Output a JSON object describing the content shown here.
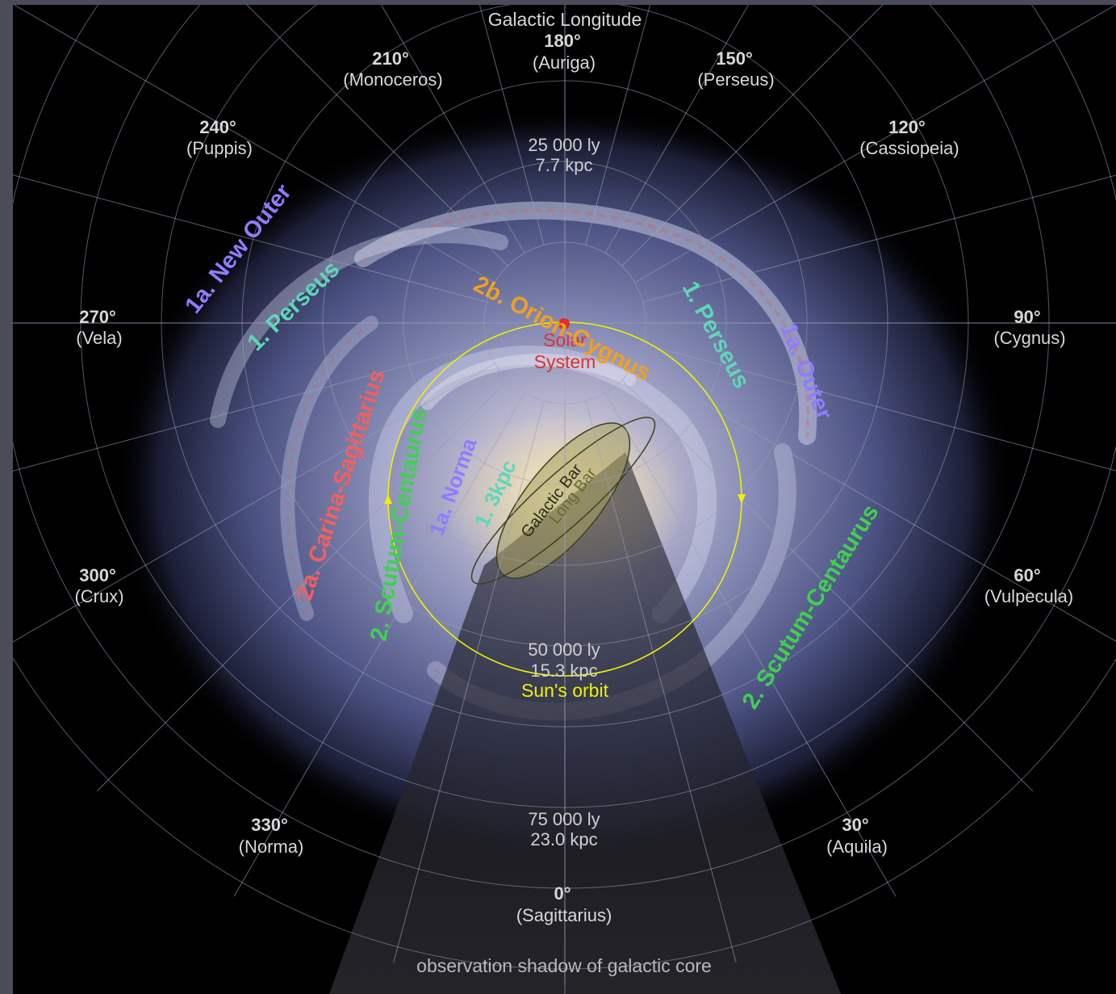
{
  "title": "Galactic Longitude",
  "longitudes": [
    {
      "deg": "180°",
      "name": "(Auriga)"
    },
    {
      "deg": "210°",
      "name": "(Monoceros)"
    },
    {
      "deg": "150°",
      "name": "(Perseus)"
    },
    {
      "deg": "240°",
      "name": "(Puppis)"
    },
    {
      "deg": "120°",
      "name": "(Cassiopeia)"
    },
    {
      "deg": "270°",
      "name": "(Vela)"
    },
    {
      "deg": "90°",
      "name": "(Cygnus)"
    },
    {
      "deg": "300°",
      "name": "(Crux)"
    },
    {
      "deg": "60°",
      "name": "(Vulpecula)"
    },
    {
      "deg": "330°",
      "name": "(Norma)"
    },
    {
      "deg": "30°",
      "name": "(Aquila)"
    },
    {
      "deg": "0°",
      "name": "(Sagittarius)"
    }
  ],
  "distances": [
    {
      "ly": "25 000 ly",
      "kpc": "7.7 kpc"
    },
    {
      "ly": "50 000 ly",
      "kpc": "15.3 kpc"
    },
    {
      "ly": "75 000 ly",
      "kpc": "23.0 kpc"
    }
  ],
  "sun_orbit": "Sun's orbit",
  "solar_system": {
    "line1": "Solar",
    "line2": "System"
  },
  "arms": {
    "new_outer": "1a. New Outer",
    "perseus_left": "1. Perseus",
    "orion_cygnus": "2b. Orion-Cygnus",
    "perseus_right": "1. Perseus",
    "outer": "1a. Outer",
    "carina_sagittarius": "2a. Carina-Sagittarius",
    "scutum_centaurus_left": "2. Scutum-Centaurus",
    "norma": "1a. Norma",
    "three_kpc": "1. 3kpc",
    "scutum_centaurus_right": "2. Scutum-Centaurus"
  },
  "galactic_bar": "Galactic Bar",
  "long_bar": "Long Bar",
  "shadow_caption": "observation shadow of galactic core",
  "colors": {
    "background": "#000000",
    "frame": "#4a4c5a",
    "new_outer": "#8f7cff",
    "perseus": "#5fd6b8",
    "orion": "#f0a020",
    "carina": "#f06060",
    "scutum": "#40d050",
    "norma": "#8f7cff",
    "three_kpc": "#5fd6b8",
    "solar": "#e03030",
    "sun_orbit": "#f0f000"
  }
}
